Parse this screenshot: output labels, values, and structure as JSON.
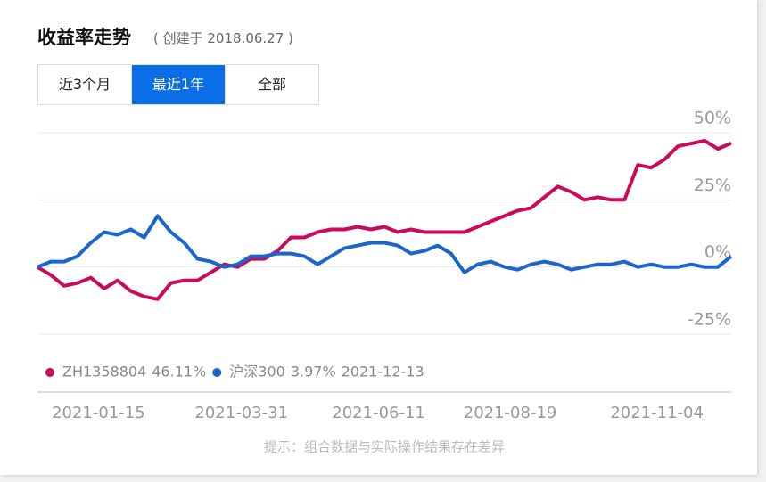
{
  "header": {
    "title": "收益率走势",
    "subtitle": "( 创建于 2018.06.27 )"
  },
  "tabs": [
    {
      "label": "近3个月",
      "active": false
    },
    {
      "label": "最近1年",
      "active": true
    },
    {
      "label": "全部",
      "active": false
    }
  ],
  "chart_data": {
    "type": "line",
    "x": [
      "2020-12-14",
      "2020-12-21",
      "2020-12-28",
      "2021-01-04",
      "2021-01-11",
      "2021-01-18",
      "2021-01-25",
      "2021-02-01",
      "2021-02-08",
      "2021-02-15",
      "2021-02-22",
      "2021-03-01",
      "2021-03-08",
      "2021-03-15",
      "2021-03-22",
      "2021-03-29",
      "2021-04-05",
      "2021-04-12",
      "2021-04-19",
      "2021-04-26",
      "2021-05-03",
      "2021-05-10",
      "2021-05-17",
      "2021-05-24",
      "2021-05-31",
      "2021-06-07",
      "2021-06-14",
      "2021-06-21",
      "2021-06-28",
      "2021-07-05",
      "2021-07-12",
      "2021-07-19",
      "2021-07-26",
      "2021-08-02",
      "2021-08-09",
      "2021-08-16",
      "2021-08-23",
      "2021-08-30",
      "2021-09-06",
      "2021-09-13",
      "2021-09-20",
      "2021-09-27",
      "2021-10-04",
      "2021-10-11",
      "2021-10-18",
      "2021-10-25",
      "2021-11-01",
      "2021-11-08",
      "2021-11-15",
      "2021-11-22",
      "2021-11-29",
      "2021-12-06",
      "2021-12-13"
    ],
    "series": [
      {
        "name": "ZH1358804",
        "latest_label": "46.11%",
        "color": "#cc0a5c",
        "values": [
          0,
          -3,
          -7,
          -6,
          -4,
          -8,
          -5,
          -9,
          -11,
          -12,
          -6,
          -5,
          -5,
          -2,
          1,
          0,
          3,
          3,
          6,
          11,
          11,
          13,
          14,
          14,
          15,
          14,
          15,
          13,
          14,
          13,
          13,
          13,
          13,
          15,
          17,
          19,
          21,
          22,
          26,
          30,
          28,
          25,
          26,
          25,
          25,
          38,
          37,
          40,
          45,
          46,
          47,
          44,
          46.11
        ]
      },
      {
        "name": "沪深300",
        "latest_label": "3.97%",
        "color": "#1a66cc",
        "values": [
          0,
          2,
          2,
          4,
          9,
          13,
          12,
          14,
          11,
          19,
          13,
          9,
          3,
          2,
          0,
          1,
          4,
          4,
          5,
          5,
          4,
          1,
          4,
          7,
          8,
          9,
          9,
          8,
          5,
          6,
          8,
          5,
          -2,
          1,
          2,
          0,
          -1,
          1,
          2,
          1,
          -1,
          0,
          1,
          1,
          2,
          0,
          1,
          0,
          0,
          1,
          0,
          0,
          3.97
        ]
      }
    ],
    "legend_date": "2021-12-13",
    "xlim": [
      "2020-12-14",
      "2021-12-13"
    ],
    "xticks": [
      "2021-01-15",
      "2021-03-31",
      "2021-06-11",
      "2021-08-19",
      "2021-11-04"
    ],
    "ylim": [
      -25,
      50
    ],
    "yticks": [
      {
        "value": -25,
        "label": "-25%"
      },
      {
        "value": 0,
        "label": "0%"
      },
      {
        "value": 25,
        "label": "25%"
      },
      {
        "value": 50,
        "label": "50%"
      }
    ],
    "grid": true
  },
  "footer": {
    "note": "提示：组合数据与实际操作结果存在差异"
  }
}
